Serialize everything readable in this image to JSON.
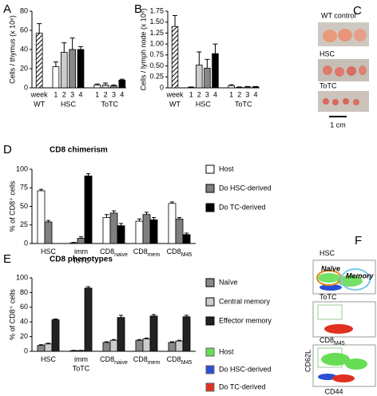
{
  "chart_data": [
    {
      "type": "bar",
      "panel": "A",
      "ylabel": "Cells / thymus (x 10⁶)",
      "ylim": [
        0,
        80
      ],
      "yticks": [
        0,
        20,
        40,
        60,
        80
      ],
      "groups": [
        {
          "label": "WT",
          "hatch": true,
          "categories": [
            "week"
          ],
          "values": [
            57
          ],
          "errors": [
            10
          ],
          "colors": [
            "#ffffff"
          ]
        },
        {
          "label": "HSC",
          "categories": [
            "1",
            "2",
            "3",
            "4"
          ],
          "values": [
            22,
            37,
            40,
            40
          ],
          "errors": [
            5,
            10,
            12,
            3
          ],
          "colors": [
            "#ffffff",
            "#cccccc",
            "#888888",
            "#000000"
          ]
        },
        {
          "label": "ToTC",
          "categories": [
            "1",
            "2",
            "3",
            "4"
          ],
          "values": [
            3,
            3,
            2,
            8
          ],
          "errors": [
            1,
            2,
            1,
            1
          ],
          "colors": [
            "#ffffff",
            "#cccccc",
            "#888888",
            "#000000"
          ]
        }
      ]
    },
    {
      "type": "bar",
      "panel": "B",
      "ylabel": "Cells / lymph node (x 10⁶)",
      "ylim": [
        0,
        1.75
      ],
      "yticks": [
        0,
        0.25,
        {
          "value": 0.5,
          "label": "0.50"
        },
        0.75,
        {
          "value": 1,
          "label": "1.00"
        },
        1.25,
        {
          "value": 1.5,
          "label": "1.50"
        },
        1.75
      ],
      "groups": [
        {
          "label": "WT",
          "hatch": true,
          "categories": [
            "week"
          ],
          "values": [
            1.4
          ],
          "errors": [
            0.25
          ],
          "colors": [
            "#ffffff"
          ]
        },
        {
          "label": "HSC",
          "categories": [
            "1",
            "2",
            "3",
            "4"
          ],
          "values": [
            0.01,
            0.52,
            0.45,
            0.78
          ],
          "errors": [
            0.01,
            0.3,
            0.2,
            0.22
          ],
          "colors": [
            "#ffffff",
            "#cccccc",
            "#888888",
            "#000000"
          ]
        },
        {
          "label": "ToTC",
          "categories": [
            "1",
            "2",
            "3",
            "4"
          ],
          "values": [
            0.05,
            0.01,
            0.02,
            0.02
          ],
          "errors": [
            0.02,
            0.01,
            0.01,
            0.01
          ],
          "colors": [
            "#ffffff",
            "#cccccc",
            "#888888",
            "#000000"
          ]
        }
      ]
    },
    {
      "type": "grouped_bar",
      "panel": "D",
      "title": "CD8 chimerism",
      "ylabel": "% of CD8⁺ cells",
      "ylim": [
        0,
        100
      ],
      "yticks": [
        0,
        25,
        50,
        75,
        100
      ],
      "categories": [
        {
          "text": "HSC"
        },
        {
          "text": "imm",
          "text2": "ToTC"
        },
        {
          "text": "CD8",
          "sub": "naive"
        },
        {
          "text": "CD8",
          "sub": "mem"
        },
        {
          "text": "CD8",
          "sub": "M45"
        }
      ],
      "series": [
        {
          "name": "Host",
          "color": "#ffffff",
          "values": [
            71,
            1,
            35,
            30,
            54
          ],
          "errors": [
            2,
            0.5,
            4,
            3,
            2
          ]
        },
        {
          "name": "Do HSC-derived",
          "color": "#808080",
          "values": [
            29,
            7,
            41,
            39,
            33
          ],
          "errors": [
            2,
            2,
            3,
            3,
            2
          ]
        },
        {
          "name": "Do TC-derived",
          "color": "#000000",
          "values": [
            0,
            91,
            24,
            32,
            12
          ],
          "errors": [
            0,
            3,
            3,
            3,
            2
          ]
        }
      ]
    },
    {
      "type": "grouped_bar",
      "panel": "E",
      "title": "CD8 phenotypes",
      "ylabel": "% of CD8⁺ cells",
      "ylim": [
        0,
        100
      ],
      "yticks": [
        0,
        20,
        40,
        60,
        80,
        100
      ],
      "categories": [
        {
          "text": "HSC"
        },
        {
          "text": "imm",
          "text2": "ToTC"
        },
        {
          "text": "CD8",
          "sub": "naive"
        },
        {
          "text": "CD8",
          "sub": "mem"
        },
        {
          "text": "CD8",
          "sub": "M45"
        }
      ],
      "series": [
        {
          "name": "Naïve",
          "color": "#888888",
          "values": [
            8,
            1,
            12,
            15,
            12
          ],
          "errors": [
            1,
            0.3,
            1,
            1,
            1
          ]
        },
        {
          "name": "Central memory",
          "color": "#cccccc",
          "values": [
            10,
            1,
            15,
            17,
            14
          ],
          "errors": [
            1,
            0.3,
            1,
            1,
            1
          ]
        },
        {
          "name": "Effector memory",
          "color": "#222222",
          "values": [
            43,
            86,
            46,
            48,
            47
          ],
          "errors": [
            1,
            2,
            3,
            2,
            2
          ]
        }
      ]
    }
  ],
  "photos": {
    "panel": "C",
    "labels": [
      "WT control",
      "HSC",
      "ToTC"
    ],
    "scale": "1 cm"
  },
  "flow": {
    "panel": "F",
    "plots": [
      {
        "text": "HSC"
      },
      {
        "text": "ToTC"
      },
      {
        "text": "CD8",
        "sub": "M45"
      }
    ],
    "gates": [
      "Naïve",
      "Memory"
    ],
    "y_axis": "CD62L",
    "x_axis": "CD44",
    "legend": [
      {
        "name": "Host",
        "color": "#66dd55"
      },
      {
        "name": "Do HSC-derived",
        "color": "#2a4fd6"
      },
      {
        "name": "Do TC-derived",
        "color": "#e03020"
      }
    ]
  }
}
